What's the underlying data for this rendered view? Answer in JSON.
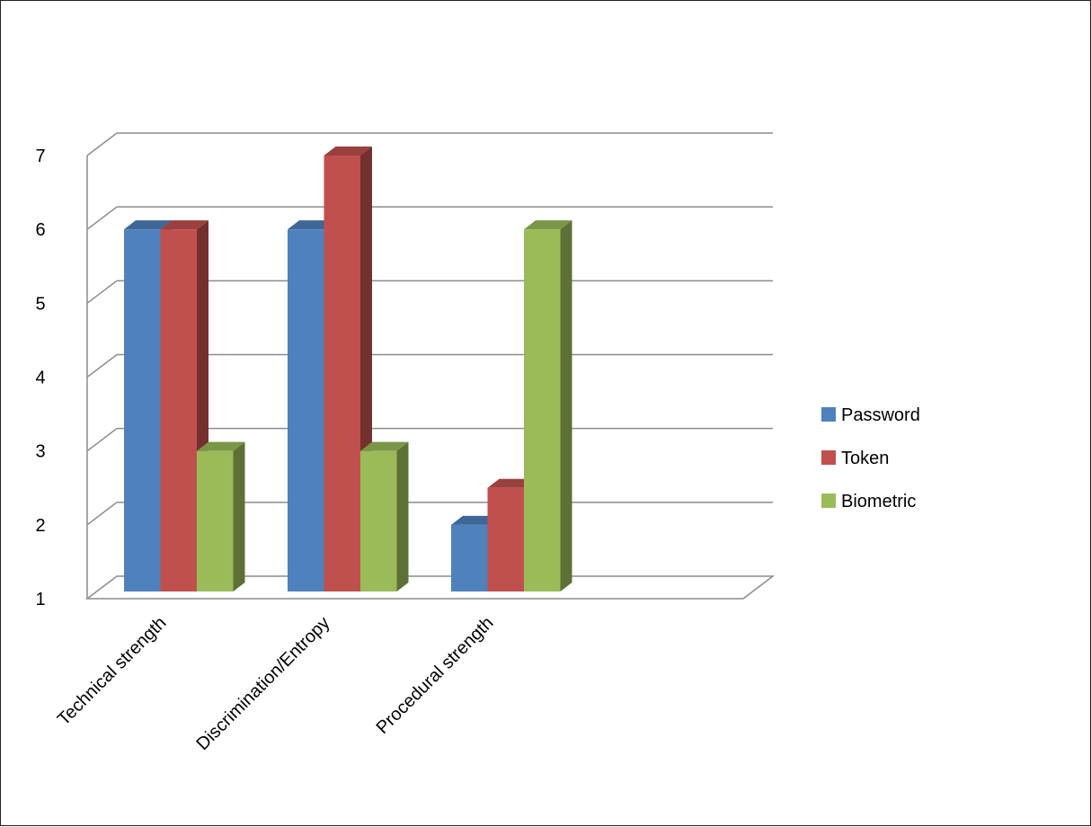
{
  "chart_data": {
    "type": "bar",
    "categories": [
      "Technical strength",
      "Discrimination/Entropy",
      "Procedural strength"
    ],
    "series": [
      {
        "name": "Password",
        "values": [
          6,
          6,
          2
        ],
        "color": "#4F81BD"
      },
      {
        "name": "Token",
        "values": [
          6,
          7,
          2.5
        ],
        "color": "#C0504D"
      },
      {
        "name": "Biometric",
        "values": [
          3,
          3,
          6
        ],
        "color": "#9BBB59"
      }
    ],
    "ylim": [
      1,
      7
    ],
    "yticks": [
      "1",
      "2",
      "3",
      "4",
      "5",
      "6",
      "7"
    ],
    "grid": true,
    "legend": "right",
    "style": "3d-clustered-column"
  }
}
